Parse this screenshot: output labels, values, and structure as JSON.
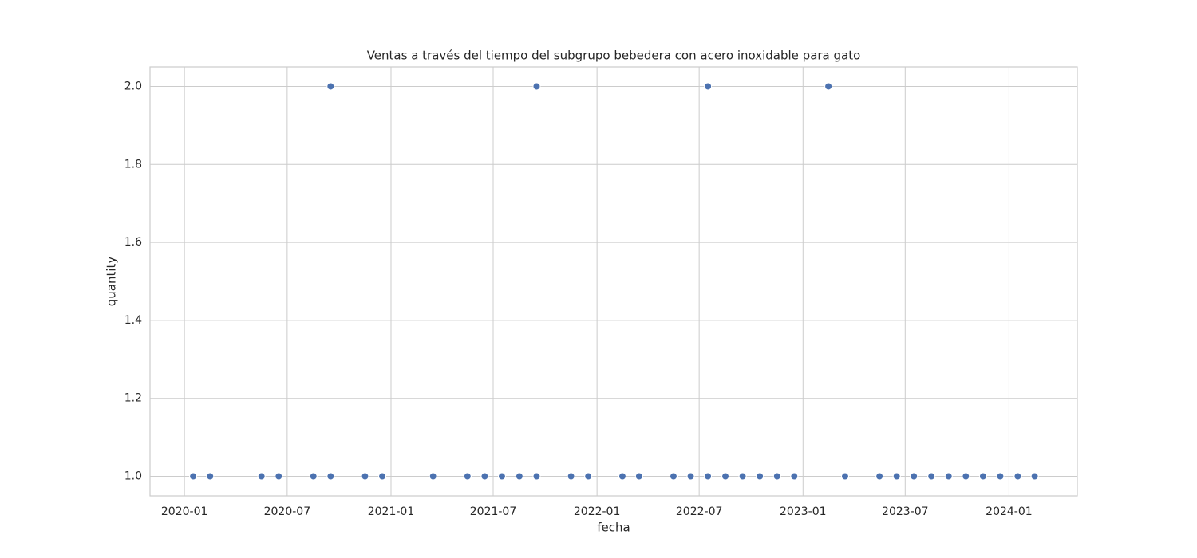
{
  "chart_data": {
    "type": "scatter",
    "title": "Ventas a través del tiempo del subgrupo bebedera con acero inoxidable para gato",
    "x_label": "fecha",
    "y_label": "quantity",
    "series": [
      {
        "color": "#4c72b0",
        "x": [
          "2020-01",
          "2020-01",
          "2020-02",
          "2020-05",
          "2020-05",
          "2020-06",
          "2020-08",
          "2020-09",
          "2020-09",
          "2020-11",
          "2020-11",
          "2020-12",
          "2021-03",
          "2021-03",
          "2021-03",
          "2021-05",
          "2021-05",
          "2021-06",
          "2021-07",
          "2021-08",
          "2021-09",
          "2021-09",
          "2021-11",
          "2021-11",
          "2021-12",
          "2021-12",
          "2022-02",
          "2022-03",
          "2022-05",
          "2022-05",
          "2022-05",
          "2022-06",
          "2022-06",
          "2022-06",
          "2022-07",
          "2022-07",
          "2022-08",
          "2022-09",
          "2022-09",
          "2022-09",
          "2022-10",
          "2022-11",
          "2022-12",
          "2022-12",
          "2023-02",
          "2023-03",
          "2023-03",
          "2023-05",
          "2023-06",
          "2023-06",
          "2023-06",
          "2023-07",
          "2023-08",
          "2023-08",
          "2023-09",
          "2023-10",
          "2023-10",
          "2023-11",
          "2023-12",
          "2024-01",
          "2024-01",
          "2024-01",
          "2024-02",
          "2024-02"
        ],
        "values": [
          1,
          1,
          1,
          1,
          1,
          1,
          1,
          2,
          1,
          1,
          1,
          1,
          1,
          1,
          1,
          1,
          1,
          1,
          1,
          1,
          2,
          1,
          1,
          1,
          1,
          1,
          1,
          1,
          1,
          1,
          1,
          1,
          1,
          1,
          1,
          2,
          1,
          1,
          1,
          1,
          1,
          1,
          1,
          1,
          2,
          1,
          1,
          1,
          1,
          1,
          1,
          1,
          1,
          1,
          1,
          1,
          1,
          1,
          1,
          1,
          1,
          1,
          1,
          1
        ]
      }
    ],
    "xlim": [
      "2019-11",
      "2024-05"
    ],
    "xticks": [
      "2020-01",
      "2020-07",
      "2021-01",
      "2021-07",
      "2022-01",
      "2022-07",
      "2023-01",
      "2023-07",
      "2024-01"
    ],
    "ylim": [
      0.95,
      2.05
    ],
    "yticks": [
      {
        "value": 1,
        "label": "1.0"
      },
      1.2,
      1.4,
      1.6,
      1.8,
      {
        "value": 2,
        "label": "2.0"
      }
    ],
    "grid": true
  }
}
